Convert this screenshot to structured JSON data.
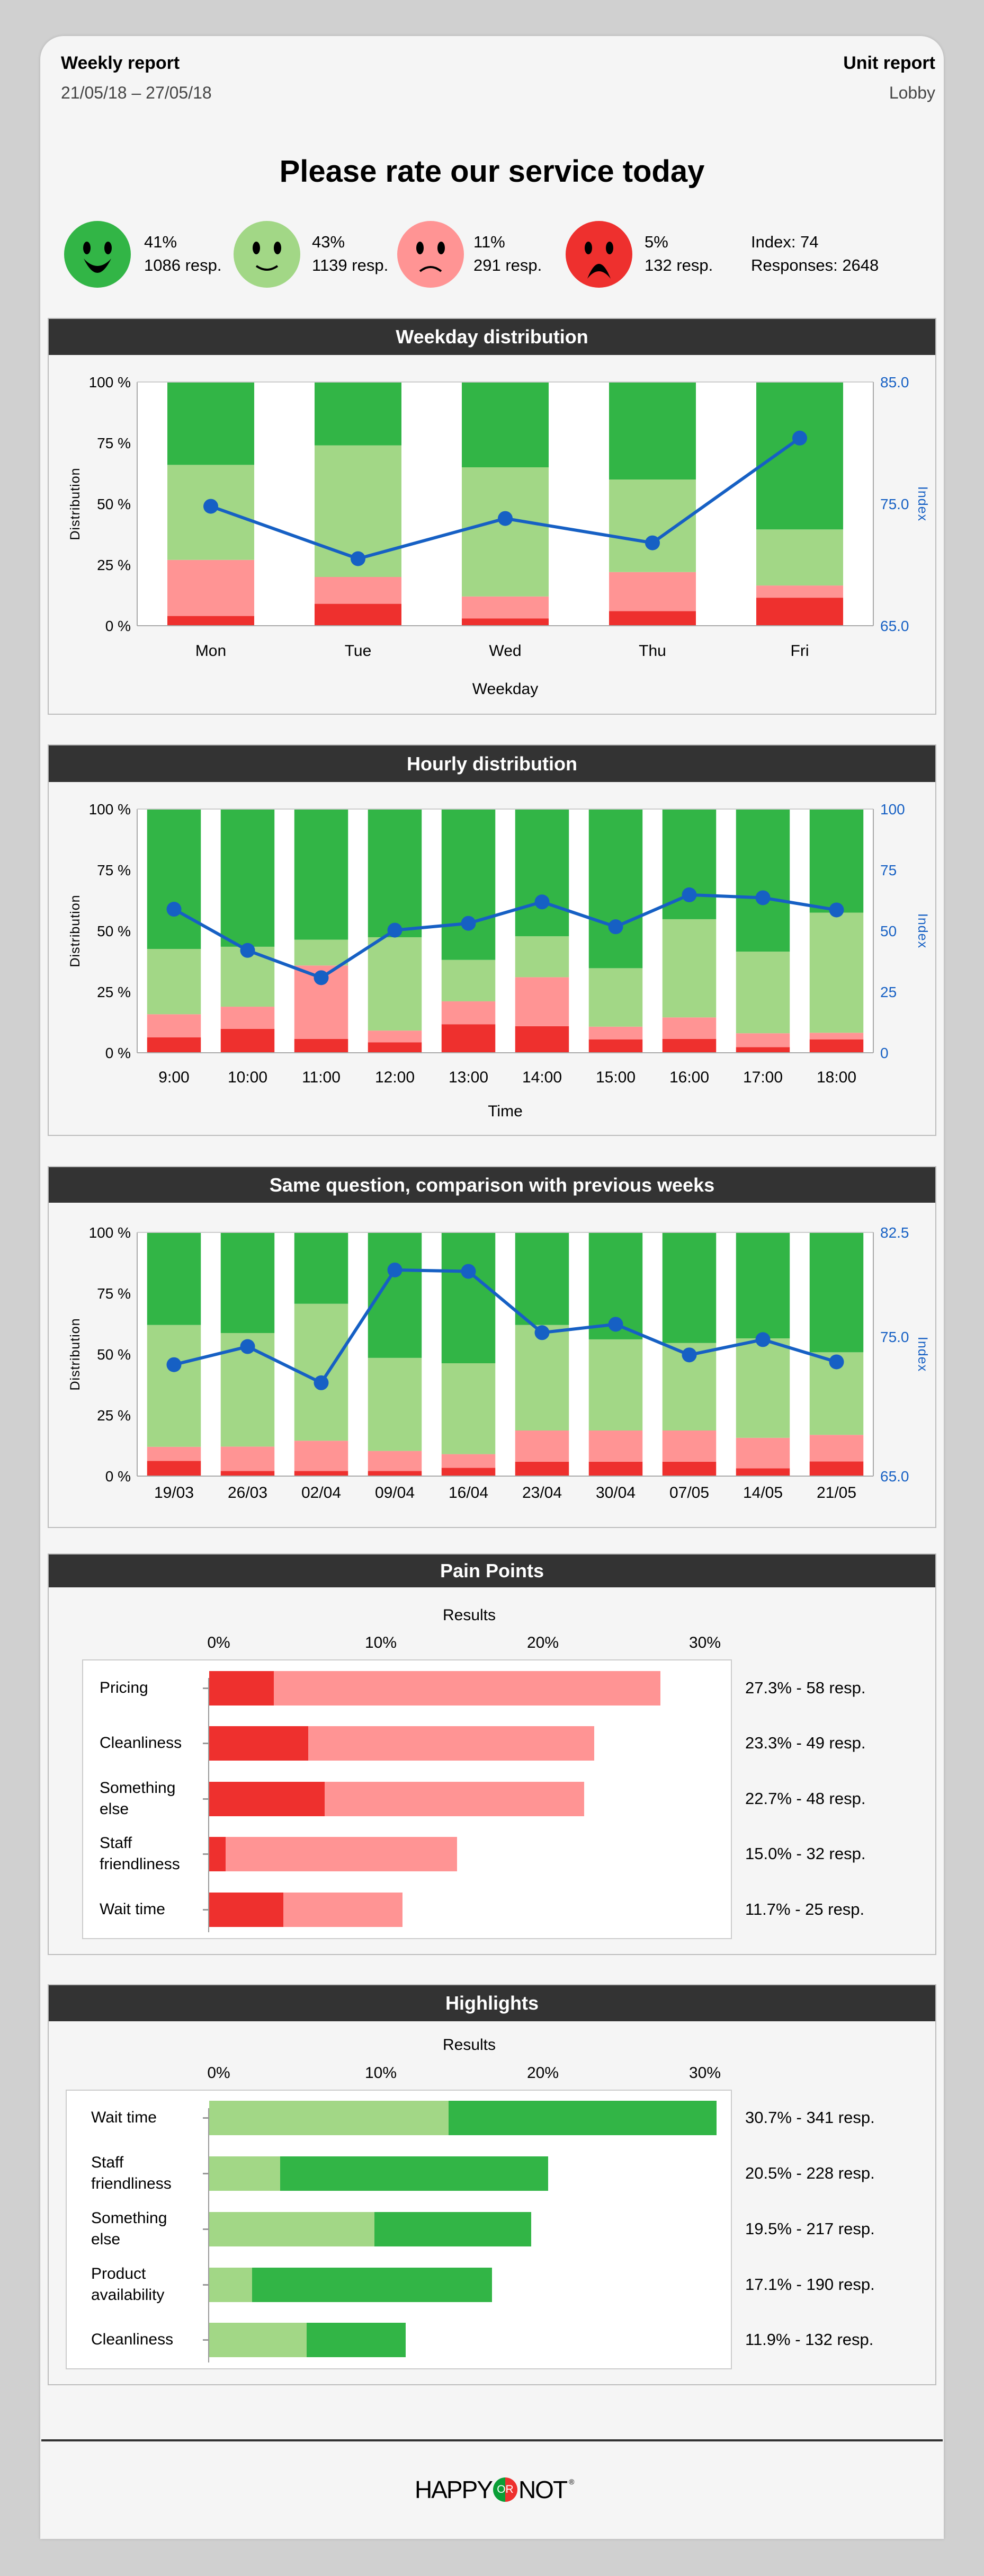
{
  "header": {
    "report_type": "Weekly report",
    "date_range": "21/05/18 – 27/05/18",
    "report_scope": "Unit report",
    "unit_name": "Lobby"
  },
  "question": "Please rate our service today",
  "summary": {
    "faces": [
      {
        "icon": "very-happy-face-icon",
        "color": "#32b546",
        "percent": "41%",
        "responses": "1086 resp."
      },
      {
        "icon": "happy-face-icon",
        "color": "#a2d786",
        "percent": "43%",
        "responses": "1139 resp."
      },
      {
        "icon": "unhappy-face-icon",
        "color": "#ff9494",
        "percent": "11%",
        "responses": "291 resp."
      },
      {
        "icon": "very-unhappy-face-icon",
        "color": "#ee302e",
        "percent": "5%",
        "responses": "132 resp."
      }
    ],
    "index": "Index: 74",
    "responses": "Responses: 2648"
  },
  "sections": {
    "weekday": "Weekday distribution",
    "hourly": "Hourly distribution",
    "weeks": "Same question, comparison with previous weeks",
    "pain": "Pain Points",
    "highlights": "Highlights"
  },
  "colors": {
    "very_unhappy": "#ee302e",
    "unhappy": "#ff9494",
    "happy": "#a2d786",
    "very_happy": "#32b546",
    "index_line": "#1660c4",
    "section_header": "#333333"
  },
  "chart_data": [
    {
      "type": "bar",
      "stacked": true,
      "categories": [
        "Mon",
        "Tue",
        "Wed",
        "Thu",
        "Fri"
      ],
      "xlabel": "Weekday",
      "ylabel": "Distribution",
      "y2label": "Index",
      "ylim": [
        0,
        100
      ],
      "yticks": [
        "0 %",
        "25 %",
        "50 %",
        "75 %",
        "100 %"
      ],
      "y2lim": [
        65,
        85
      ],
      "y2ticks": [
        {
          "v": 65,
          "label": "65.0"
        },
        {
          "v": 75,
          "label": "75.0"
        },
        {
          "v": 85,
          "label": "85.0"
        }
      ],
      "series": [
        {
          "color": "#ee302e",
          "values": [
            4,
            9,
            3,
            6,
            11.5
          ]
        },
        {
          "color": "#ff9494",
          "values": [
            23,
            11,
            9,
            16,
            5
          ]
        },
        {
          "color": "#a2d786",
          "values": [
            39,
            54,
            53,
            38,
            23
          ]
        },
        {
          "color": "#32b546",
          "values": [
            34,
            26,
            35,
            40,
            60.5
          ]
        }
      ],
      "index_line": {
        "axis": "right",
        "color": "#1660c4",
        "values": [
          74.8,
          70.5,
          73.8,
          71.8,
          80.4
        ]
      }
    },
    {
      "type": "bar",
      "stacked": true,
      "categories": [
        "9:00",
        "10:00",
        "11:00",
        "12:00",
        "13:00",
        "14:00",
        "15:00",
        "16:00",
        "17:00",
        "18:00"
      ],
      "xlabel": "Time",
      "ylabel": "Distribution",
      "y2label": "Index",
      "ylim": [
        0,
        100
      ],
      "yticks": [
        "0 %",
        "25 %",
        "50 %",
        "75 %",
        "100 %"
      ],
      "y2lim": [
        0,
        100
      ],
      "y2ticks": [
        {
          "v": 0,
          "label": "0"
        },
        {
          "v": 25,
          "label": "25"
        },
        {
          "v": 50,
          "label": "50"
        },
        {
          "v": 75,
          "label": "75"
        },
        {
          "v": 100,
          "label": "100"
        }
      ],
      "series": [
        {
          "color": "#ee302e",
          "values": [
            6.3,
            9.8,
            5.7,
            4.3,
            11.7,
            10.9,
            5.5,
            5.7,
            2.3,
            5.5
          ]
        },
        {
          "color": "#ff9494",
          "values": [
            9.5,
            9.1,
            30.1,
            4.8,
            9.4,
            20.1,
            5.2,
            8.8,
            5.7,
            2.7
          ]
        },
        {
          "color": "#a2d786",
          "values": [
            26.8,
            24.6,
            10.6,
            38.3,
            17,
            16.8,
            24,
            40.3,
            33.5,
            49.3
          ]
        },
        {
          "color": "#32b546",
          "values": [
            57.4,
            56.5,
            53.6,
            52.6,
            61.9,
            52.2,
            65.3,
            45.2,
            58.5,
            42.5
          ]
        }
      ],
      "index_line": {
        "axis": "right",
        "color": "#1660c4",
        "values": [
          58.9,
          42,
          30.8,
          50.3,
          53.1,
          61.9,
          51.7,
          64.8,
          63.6,
          58.6
        ]
      }
    },
    {
      "type": "bar",
      "stacked": true,
      "categories": [
        "19/03",
        "26/03",
        "02/04",
        "09/04",
        "16/04",
        "23/04",
        "30/04",
        "07/05",
        "14/05",
        "21/05"
      ],
      "xlabel": "",
      "ylabel": "Distribution",
      "y2label": "Index",
      "ylim": [
        0,
        100
      ],
      "yticks": [
        "0 %",
        "25 %",
        "50 %",
        "75 %",
        "100 %"
      ],
      "y2lim": [
        65,
        82.5
      ],
      "y2ticks": [
        {
          "v": 65,
          "label": "65.0"
        },
        {
          "v": 75,
          "label": "75.0"
        },
        {
          "v": 82.5,
          "label": "82.5"
        }
      ],
      "series": [
        {
          "color": "#ee302e",
          "values": [
            6.2,
            2.1,
            2.1,
            2.1,
            3.4,
            5.9,
            5.9,
            5.9,
            3.2,
            6
          ]
        },
        {
          "color": "#ff9494",
          "values": [
            5.8,
            10,
            12.4,
            8.2,
            5.6,
            12.8,
            12.8,
            12.8,
            12.5,
            10.9
          ]
        },
        {
          "color": "#a2d786",
          "values": [
            50,
            46.6,
            56.2,
            38.2,
            37.3,
            43.3,
            37.4,
            35.9,
            40.8,
            33.9
          ]
        },
        {
          "color": "#32b546",
          "values": [
            38,
            41.3,
            29.3,
            51.5,
            53.7,
            38,
            43.9,
            45.4,
            43.5,
            49.2
          ]
        }
      ],
      "index_line": {
        "axis": "right",
        "color": "#1660c4",
        "values": [
          73.0,
          74.3,
          71.7,
          79.8,
          79.7,
          75.3,
          75.9,
          73.7,
          74.8,
          73.2
        ]
      }
    },
    {
      "type": "bar",
      "orientation": "horizontal",
      "stacked": true,
      "title": "Results",
      "xlim": [
        0,
        30
      ],
      "xticks": [
        "0%",
        "10%",
        "20%",
        "30%"
      ],
      "categories": [
        "Pricing",
        "Cleanliness",
        "Something else",
        "Staff friendliness",
        "Wait time"
      ],
      "series": [
        {
          "color": "#ee302e",
          "values": [
            3.9,
            6.0,
            7.0,
            1.0,
            4.5
          ]
        },
        {
          "color": "#ff9494",
          "values": [
            23.4,
            17.3,
            15.7,
            14.0,
            7.2
          ]
        }
      ],
      "totals": [
        27.3,
        23.3,
        22.7,
        15.0,
        11.7
      ],
      "value_labels": [
        "27.3% - 58 resp.",
        "23.3% - 49 resp.",
        "22.7% - 48 resp.",
        "15.0% - 32 resp.",
        "11.7% - 25 resp."
      ]
    },
    {
      "type": "bar",
      "orientation": "horizontal",
      "stacked": true,
      "title": "Results",
      "xlim": [
        0,
        30
      ],
      "xticks": [
        "0%",
        "10%",
        "20%",
        "30%"
      ],
      "categories": [
        "Wait time",
        "Staff friendliness",
        "Something else",
        "Product availability",
        "Cleanliness"
      ],
      "series": [
        {
          "color": "#a2d786",
          "values": [
            14.5,
            4.3,
            10.0,
            2.6,
            5.9
          ]
        },
        {
          "color": "#32b546",
          "values": [
            16.2,
            16.2,
            9.5,
            14.5,
            6.0
          ]
        }
      ],
      "totals": [
        30.7,
        20.5,
        19.5,
        17.1,
        11.9
      ],
      "value_labels": [
        "30.7% - 341 resp.",
        "20.5% - 228 resp.",
        "19.5% - 217 resp.",
        "17.1% - 190 resp.",
        "11.9% - 132 resp."
      ]
    }
  ],
  "footer": {
    "logo": {
      "happy": "HAPPY",
      "or": "OR",
      "not": "NOT",
      "registered": "®"
    }
  }
}
